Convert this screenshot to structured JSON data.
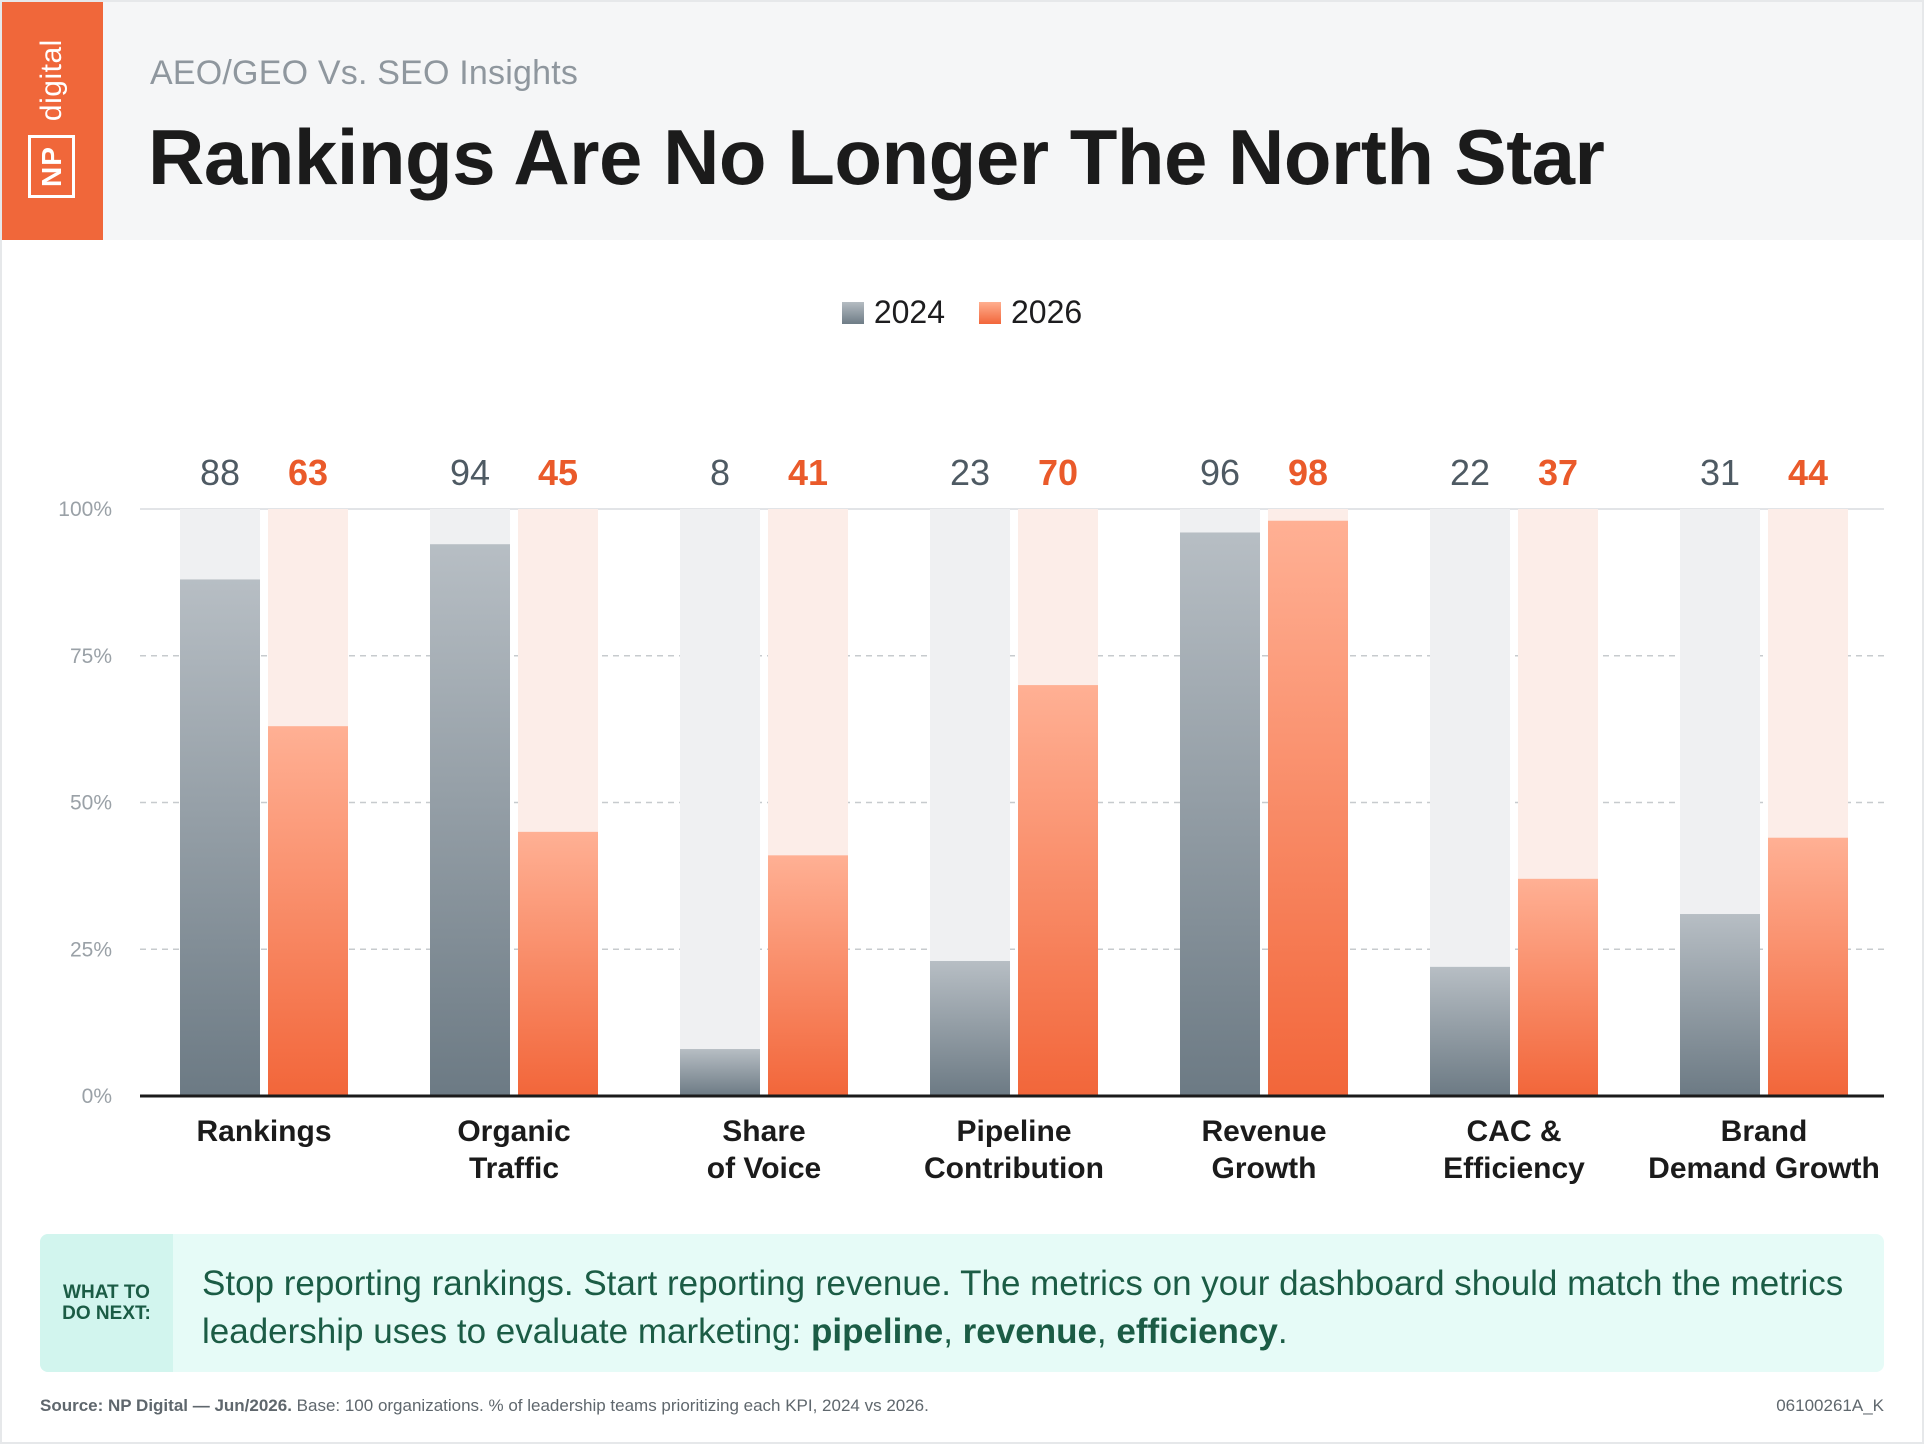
{
  "brand": {
    "logo_box": "NP",
    "logo_word": "digital",
    "accent": "#f0673a"
  },
  "header": {
    "kicker": "AEO/GEO Vs. SEO Insights",
    "title": "Rankings Are No Longer The North Star"
  },
  "chart_data": {
    "type": "bar",
    "categories": [
      [
        "Rankings"
      ],
      [
        "Organic",
        "Traffic"
      ],
      [
        "Share",
        "of Voice"
      ],
      [
        "Pipeline",
        "Contribution"
      ],
      [
        "Revenue",
        "Growth"
      ],
      [
        "CAC &",
        "Efficiency"
      ],
      [
        "Brand",
        "Demand Growth"
      ]
    ],
    "series": [
      {
        "name": "2024",
        "values": [
          88,
          94,
          8,
          23,
          96,
          22,
          31
        ],
        "color": "#6e7c86",
        "track_color": "#eff0f2"
      },
      {
        "name": "2026",
        "values": [
          63,
          45,
          41,
          70,
          98,
          37,
          44
        ],
        "color": "#f2663a",
        "track_color": "#fcede8"
      }
    ],
    "ylim": [
      0,
      100
    ],
    "yticks": [
      "0%",
      "25%",
      "50%",
      "75%",
      "100%"
    ],
    "grid": true,
    "legend": "top-center"
  },
  "callout": {
    "tag_line1": "WHAT TO",
    "tag_line2": "DO NEXT:",
    "text_main": "Stop reporting rankings. Start reporting revenue. The metrics on your dashboard should match the metrics leadership uses to evaluate marketing: ",
    "kw1": "pipeline",
    "sep1": ", ",
    "kw2": "revenue",
    "sep2": ", ",
    "kw3": "efficiency",
    "end": "."
  },
  "footer": {
    "source_bold": "Source: NP Digital — Jun/2026.",
    "source_rest": " Base: 100 organizations. % of leadership teams prioritizing each KPI, 2024 vs 2026.",
    "code": "06100261A_K"
  }
}
